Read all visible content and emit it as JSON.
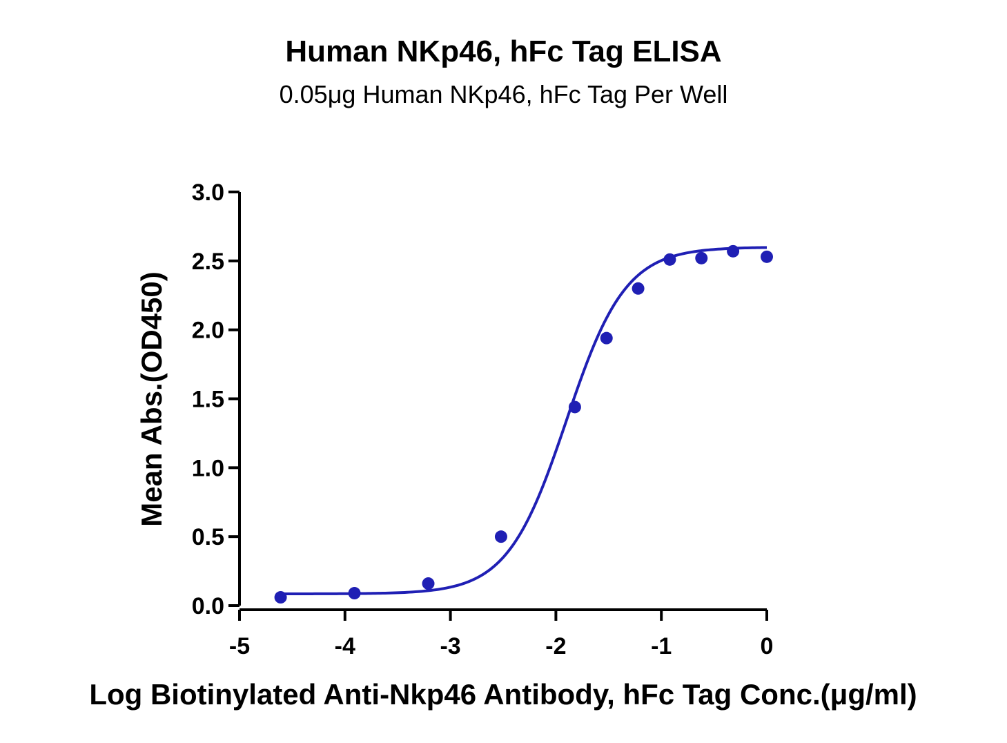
{
  "chart_data": {
    "type": "scatter",
    "title": "Human NKp46, hFc Tag ELISA",
    "subtitle": "0.05μg Human NKp46, hFc Tag Per Well",
    "xlabel": "Log Biotinylated Anti-Nkp46 Antibody, hFc Tag Conc.(μg/ml)",
    "ylabel": "Mean Abs.(OD450)",
    "xlim": [
      -5,
      0
    ],
    "ylim": [
      0,
      3.0
    ],
    "x_ticks": [
      -5,
      -4,
      -3,
      -2,
      -1,
      0
    ],
    "x_tick_labels": [
      "-5",
      "-4",
      "-3",
      "-2",
      "-1",
      "0"
    ],
    "y_ticks": [
      0,
      0.5,
      1.0,
      1.5,
      2.0,
      2.5,
      3.0
    ],
    "y_tick_labels": [
      "0.0",
      "0.5",
      "1.0",
      "1.5",
      "2.0",
      "2.5",
      "3.0"
    ],
    "grid": false,
    "series": [
      {
        "x": [
          -4.61,
          -3.91,
          -3.21,
          -2.52,
          -1.82,
          -1.52,
          -1.22,
          -0.92,
          -0.62,
          -0.32,
          0.0
        ],
        "y": [
          0.06,
          0.09,
          0.16,
          0.5,
          1.44,
          1.94,
          2.3,
          2.51,
          2.52,
          2.57,
          2.53
        ],
        "color": "#1f1fb4"
      }
    ],
    "fit_curve": {
      "model": "4PL",
      "bottom": 0.085,
      "top": 2.6,
      "logEC50": -1.9,
      "hill": 1.55,
      "color": "#1f1fb4"
    }
  }
}
